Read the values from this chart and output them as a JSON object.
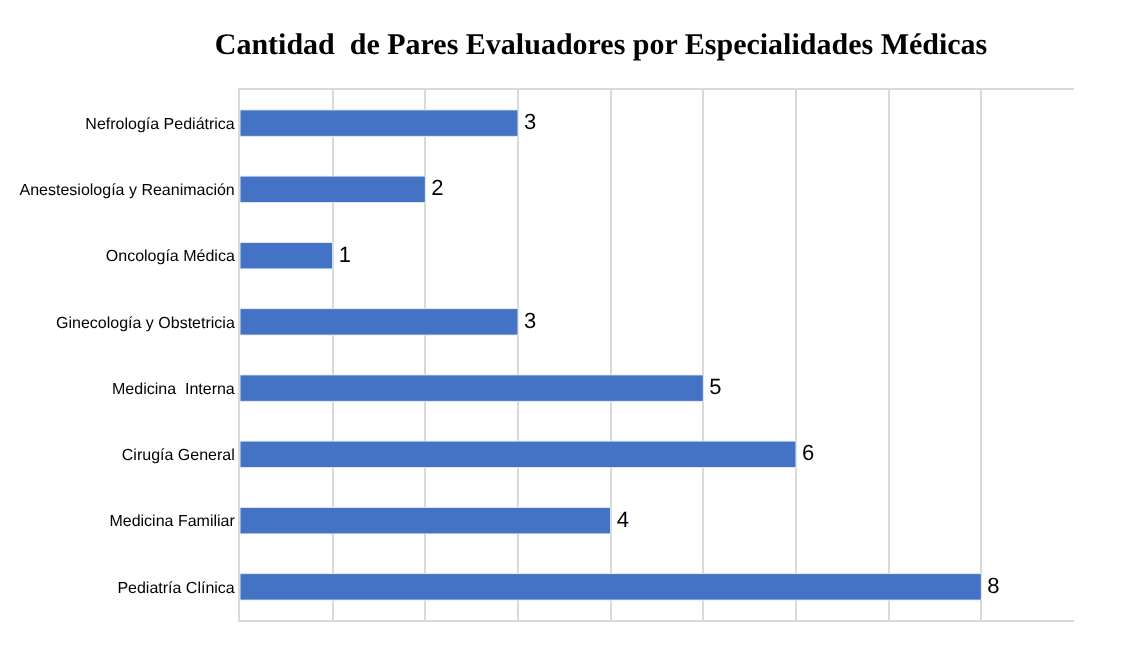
{
  "chart_data": {
    "type": "bar",
    "orientation": "horizontal",
    "title": "Cantidad  de Pares Evaluadores por Especialidades Médicas",
    "categories": [
      "Nefrología Pediátrica",
      "Anestesiología y Reanimación",
      "Oncología Médica",
      "Ginecología y Obstetricia",
      "Medicina  Interna",
      "Cirugía General",
      "Medicina Familiar",
      "Pediatría Clínica"
    ],
    "values": [
      3,
      2,
      1,
      3,
      5,
      6,
      4,
      8
    ],
    "color": "#4472c4",
    "data_labels": true,
    "xlim": [
      0,
      9
    ],
    "xticks": [
      {
        "value": 0,
        "label": null
      },
      {
        "value": 1,
        "label": null
      },
      {
        "value": 2,
        "label": null
      },
      {
        "value": 3,
        "label": null
      },
      {
        "value": 4,
        "label": null
      },
      {
        "value": 5,
        "label": null
      },
      {
        "value": 6,
        "label": null
      },
      {
        "value": 7,
        "label": null
      },
      {
        "value": 8,
        "label": null
      }
    ],
    "grid": "x",
    "tick_labels": "y"
  }
}
